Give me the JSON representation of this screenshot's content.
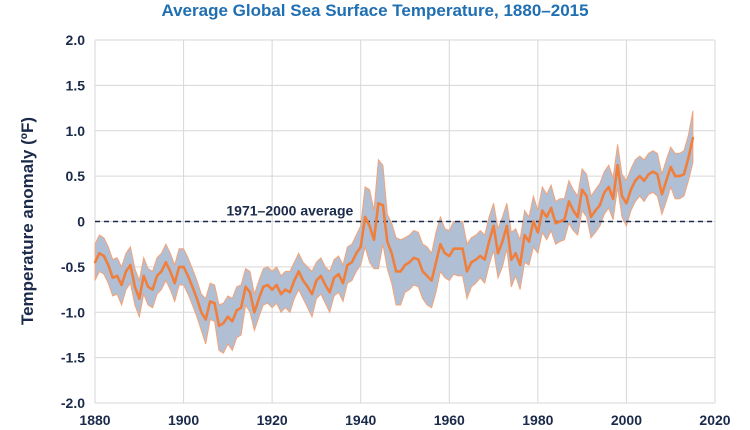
{
  "chart_data": {
    "type": "line",
    "title": "Average Global Sea Surface Temperature, 1880–2015",
    "xlabel": "",
    "ylabel": "Temperature anomaly (ºF)",
    "xlim": [
      1880,
      2020
    ],
    "ylim": [
      -2.0,
      2.0
    ],
    "x_ticks": [
      1880,
      1900,
      1920,
      1940,
      1960,
      1980,
      2000,
      2020
    ],
    "y_ticks": [
      2.0,
      1.5,
      1.0,
      0.5,
      0,
      -0.5,
      -1.0,
      -1.5,
      -2.0
    ],
    "y_tick_labels": [
      "2.0",
      "1.5",
      "1.0",
      "0.5",
      "0",
      "-0.5",
      "-1.0",
      "-1.5",
      "-2.0"
    ],
    "grid": true,
    "reference_line": {
      "y": 0,
      "label": "1971–2000 average"
    },
    "colors": {
      "line": "#f07f3c",
      "band": "#b1bfd5",
      "band_edge": "#f4a377",
      "grid": "#d7d7d7",
      "reference": "#1b2a4a",
      "title": "#1f6fb2",
      "text": "#1b2a4a"
    },
    "series": [
      {
        "type": "line",
        "x": [
          1880,
          1881,
          1882,
          1883,
          1884,
          1885,
          1886,
          1887,
          1888,
          1889,
          1890,
          1891,
          1892,
          1893,
          1894,
          1895,
          1896,
          1897,
          1898,
          1899,
          1900,
          1901,
          1902,
          1903,
          1904,
          1905,
          1906,
          1907,
          1908,
          1909,
          1910,
          1911,
          1912,
          1913,
          1914,
          1915,
          1916,
          1917,
          1918,
          1919,
          1920,
          1921,
          1922,
          1923,
          1924,
          1925,
          1926,
          1927,
          1928,
          1929,
          1930,
          1931,
          1932,
          1933,
          1934,
          1935,
          1936,
          1937,
          1938,
          1939,
          1940,
          1941,
          1942,
          1943,
          1944,
          1945,
          1946,
          1947,
          1948,
          1949,
          1950,
          1951,
          1952,
          1953,
          1954,
          1955,
          1956,
          1957,
          1958,
          1959,
          1960,
          1961,
          1962,
          1963,
          1964,
          1965,
          1966,
          1967,
          1968,
          1969,
          1970,
          1971,
          1972,
          1973,
          1974,
          1975,
          1976,
          1977,
          1978,
          1979,
          1980,
          1981,
          1982,
          1983,
          1984,
          1985,
          1986,
          1987,
          1988,
          1989,
          1990,
          1991,
          1992,
          1993,
          1994,
          1995,
          1996,
          1997,
          1998,
          1999,
          2000,
          2001,
          2002,
          2003,
          2004,
          2005,
          2006,
          2007,
          2008,
          2009,
          2010,
          2011,
          2012,
          2013,
          2014,
          2015
        ],
        "values": [
          -0.45,
          -0.35,
          -0.38,
          -0.48,
          -0.62,
          -0.6,
          -0.7,
          -0.55,
          -0.48,
          -0.72,
          -0.85,
          -0.6,
          -0.72,
          -0.75,
          -0.6,
          -0.55,
          -0.45,
          -0.55,
          -0.68,
          -0.5,
          -0.5,
          -0.6,
          -0.72,
          -0.85,
          -1.0,
          -1.08,
          -0.88,
          -0.9,
          -1.15,
          -1.12,
          -1.05,
          -1.1,
          -0.98,
          -0.95,
          -0.72,
          -0.78,
          -1.0,
          -0.85,
          -0.72,
          -0.7,
          -0.75,
          -0.7,
          -0.8,
          -0.75,
          -0.78,
          -0.65,
          -0.55,
          -0.65,
          -0.72,
          -0.8,
          -0.65,
          -0.6,
          -0.7,
          -0.78,
          -0.62,
          -0.58,
          -0.68,
          -0.48,
          -0.45,
          -0.35,
          -0.28,
          0.05,
          -0.05,
          -0.2,
          0.2,
          0.18,
          -0.22,
          -0.35,
          -0.55,
          -0.55,
          -0.48,
          -0.45,
          -0.4,
          -0.42,
          -0.55,
          -0.6,
          -0.65,
          -0.45,
          -0.25,
          -0.35,
          -0.38,
          -0.3,
          -0.3,
          -0.3,
          -0.55,
          -0.45,
          -0.42,
          -0.38,
          -0.42,
          -0.22,
          -0.05,
          -0.35,
          -0.22,
          -0.05,
          -0.42,
          -0.35,
          -0.48,
          -0.15,
          -0.22,
          0.0,
          -0.12,
          0.12,
          0.05,
          0.15,
          -0.02,
          0.0,
          0.02,
          0.22,
          0.12,
          0.05,
          0.35,
          0.28,
          0.05,
          0.12,
          0.18,
          0.32,
          0.38,
          0.25,
          0.62,
          0.28,
          0.2,
          0.35,
          0.45,
          0.5,
          0.45,
          0.52,
          0.55,
          0.52,
          0.3,
          0.45,
          0.6,
          0.5,
          0.5,
          0.52,
          0.7,
          0.92
        ],
        "lower": [
          -0.65,
          -0.55,
          -0.58,
          -0.68,
          -0.82,
          -0.8,
          -0.92,
          -0.75,
          -0.68,
          -0.92,
          -1.05,
          -0.8,
          -0.92,
          -0.95,
          -0.8,
          -0.75,
          -0.65,
          -0.75,
          -0.88,
          -0.7,
          -0.7,
          -0.8,
          -0.92,
          -1.05,
          -1.2,
          -1.35,
          -1.08,
          -1.1,
          -1.42,
          -1.45,
          -1.35,
          -1.42,
          -1.28,
          -1.25,
          -0.92,
          -1.0,
          -1.2,
          -1.05,
          -0.92,
          -0.9,
          -0.95,
          -0.9,
          -1.0,
          -0.95,
          -1.0,
          -0.85,
          -0.75,
          -0.85,
          -0.95,
          -1.05,
          -0.85,
          -0.8,
          -0.9,
          -1.0,
          -0.82,
          -0.78,
          -0.88,
          -0.68,
          -0.65,
          -0.55,
          -0.48,
          -0.28,
          -0.45,
          -0.52,
          -0.52,
          -0.25,
          -0.52,
          -0.68,
          -0.92,
          -0.92,
          -0.78,
          -0.75,
          -0.7,
          -0.72,
          -0.85,
          -0.92,
          -0.95,
          -0.78,
          -0.55,
          -0.62,
          -0.65,
          -0.58,
          -0.6,
          -0.6,
          -0.85,
          -0.72,
          -0.68,
          -0.62,
          -0.68,
          -0.48,
          -0.32,
          -0.62,
          -0.5,
          -0.3,
          -0.72,
          -0.6,
          -0.75,
          -0.45,
          -0.48,
          -0.28,
          -0.35,
          -0.12,
          -0.2,
          -0.1,
          -0.25,
          -0.22,
          -0.2,
          -0.02,
          -0.1,
          -0.15,
          0.12,
          0.05,
          -0.18,
          -0.12,
          -0.05,
          0.08,
          0.15,
          0.02,
          0.38,
          0.05,
          -0.05,
          0.12,
          0.22,
          0.28,
          0.22,
          0.3,
          0.32,
          0.28,
          0.08,
          0.22,
          0.38,
          0.25,
          0.25,
          0.28,
          0.45,
          0.65
        ],
        "upper": [
          -0.25,
          -0.15,
          -0.18,
          -0.28,
          -0.42,
          -0.4,
          -0.5,
          -0.35,
          -0.28,
          -0.52,
          -0.65,
          -0.4,
          -0.52,
          -0.55,
          -0.4,
          -0.35,
          -0.25,
          -0.35,
          -0.48,
          -0.3,
          -0.3,
          -0.4,
          -0.52,
          -0.65,
          -0.8,
          -0.85,
          -0.68,
          -0.7,
          -0.92,
          -0.9,
          -0.82,
          -0.85,
          -0.72,
          -0.7,
          -0.52,
          -0.55,
          -0.8,
          -0.65,
          -0.52,
          -0.5,
          -0.55,
          -0.5,
          -0.6,
          -0.55,
          -0.55,
          -0.45,
          -0.35,
          -0.45,
          -0.5,
          -0.55,
          -0.45,
          -0.4,
          -0.5,
          -0.55,
          -0.42,
          -0.38,
          -0.48,
          -0.28,
          -0.25,
          -0.15,
          -0.05,
          0.38,
          0.35,
          0.12,
          0.68,
          0.62,
          0.08,
          -0.02,
          -0.18,
          -0.2,
          -0.18,
          -0.15,
          -0.1,
          -0.12,
          -0.25,
          -0.28,
          -0.35,
          -0.12,
          0.05,
          -0.08,
          -0.1,
          0.0,
          0.0,
          0.0,
          -0.25,
          -0.18,
          -0.15,
          -0.1,
          -0.15,
          0.05,
          0.2,
          -0.08,
          0.05,
          0.2,
          -0.12,
          -0.08,
          -0.2,
          0.12,
          0.05,
          0.28,
          0.12,
          0.38,
          0.3,
          0.4,
          0.22,
          0.25,
          0.25,
          0.45,
          0.35,
          0.28,
          0.58,
          0.52,
          0.28,
          0.35,
          0.42,
          0.55,
          0.62,
          0.48,
          0.85,
          0.52,
          0.45,
          0.58,
          0.68,
          0.72,
          0.68,
          0.75,
          0.78,
          0.75,
          0.52,
          0.68,
          0.82,
          0.75,
          0.75,
          0.78,
          0.95,
          1.22
        ]
      }
    ]
  }
}
